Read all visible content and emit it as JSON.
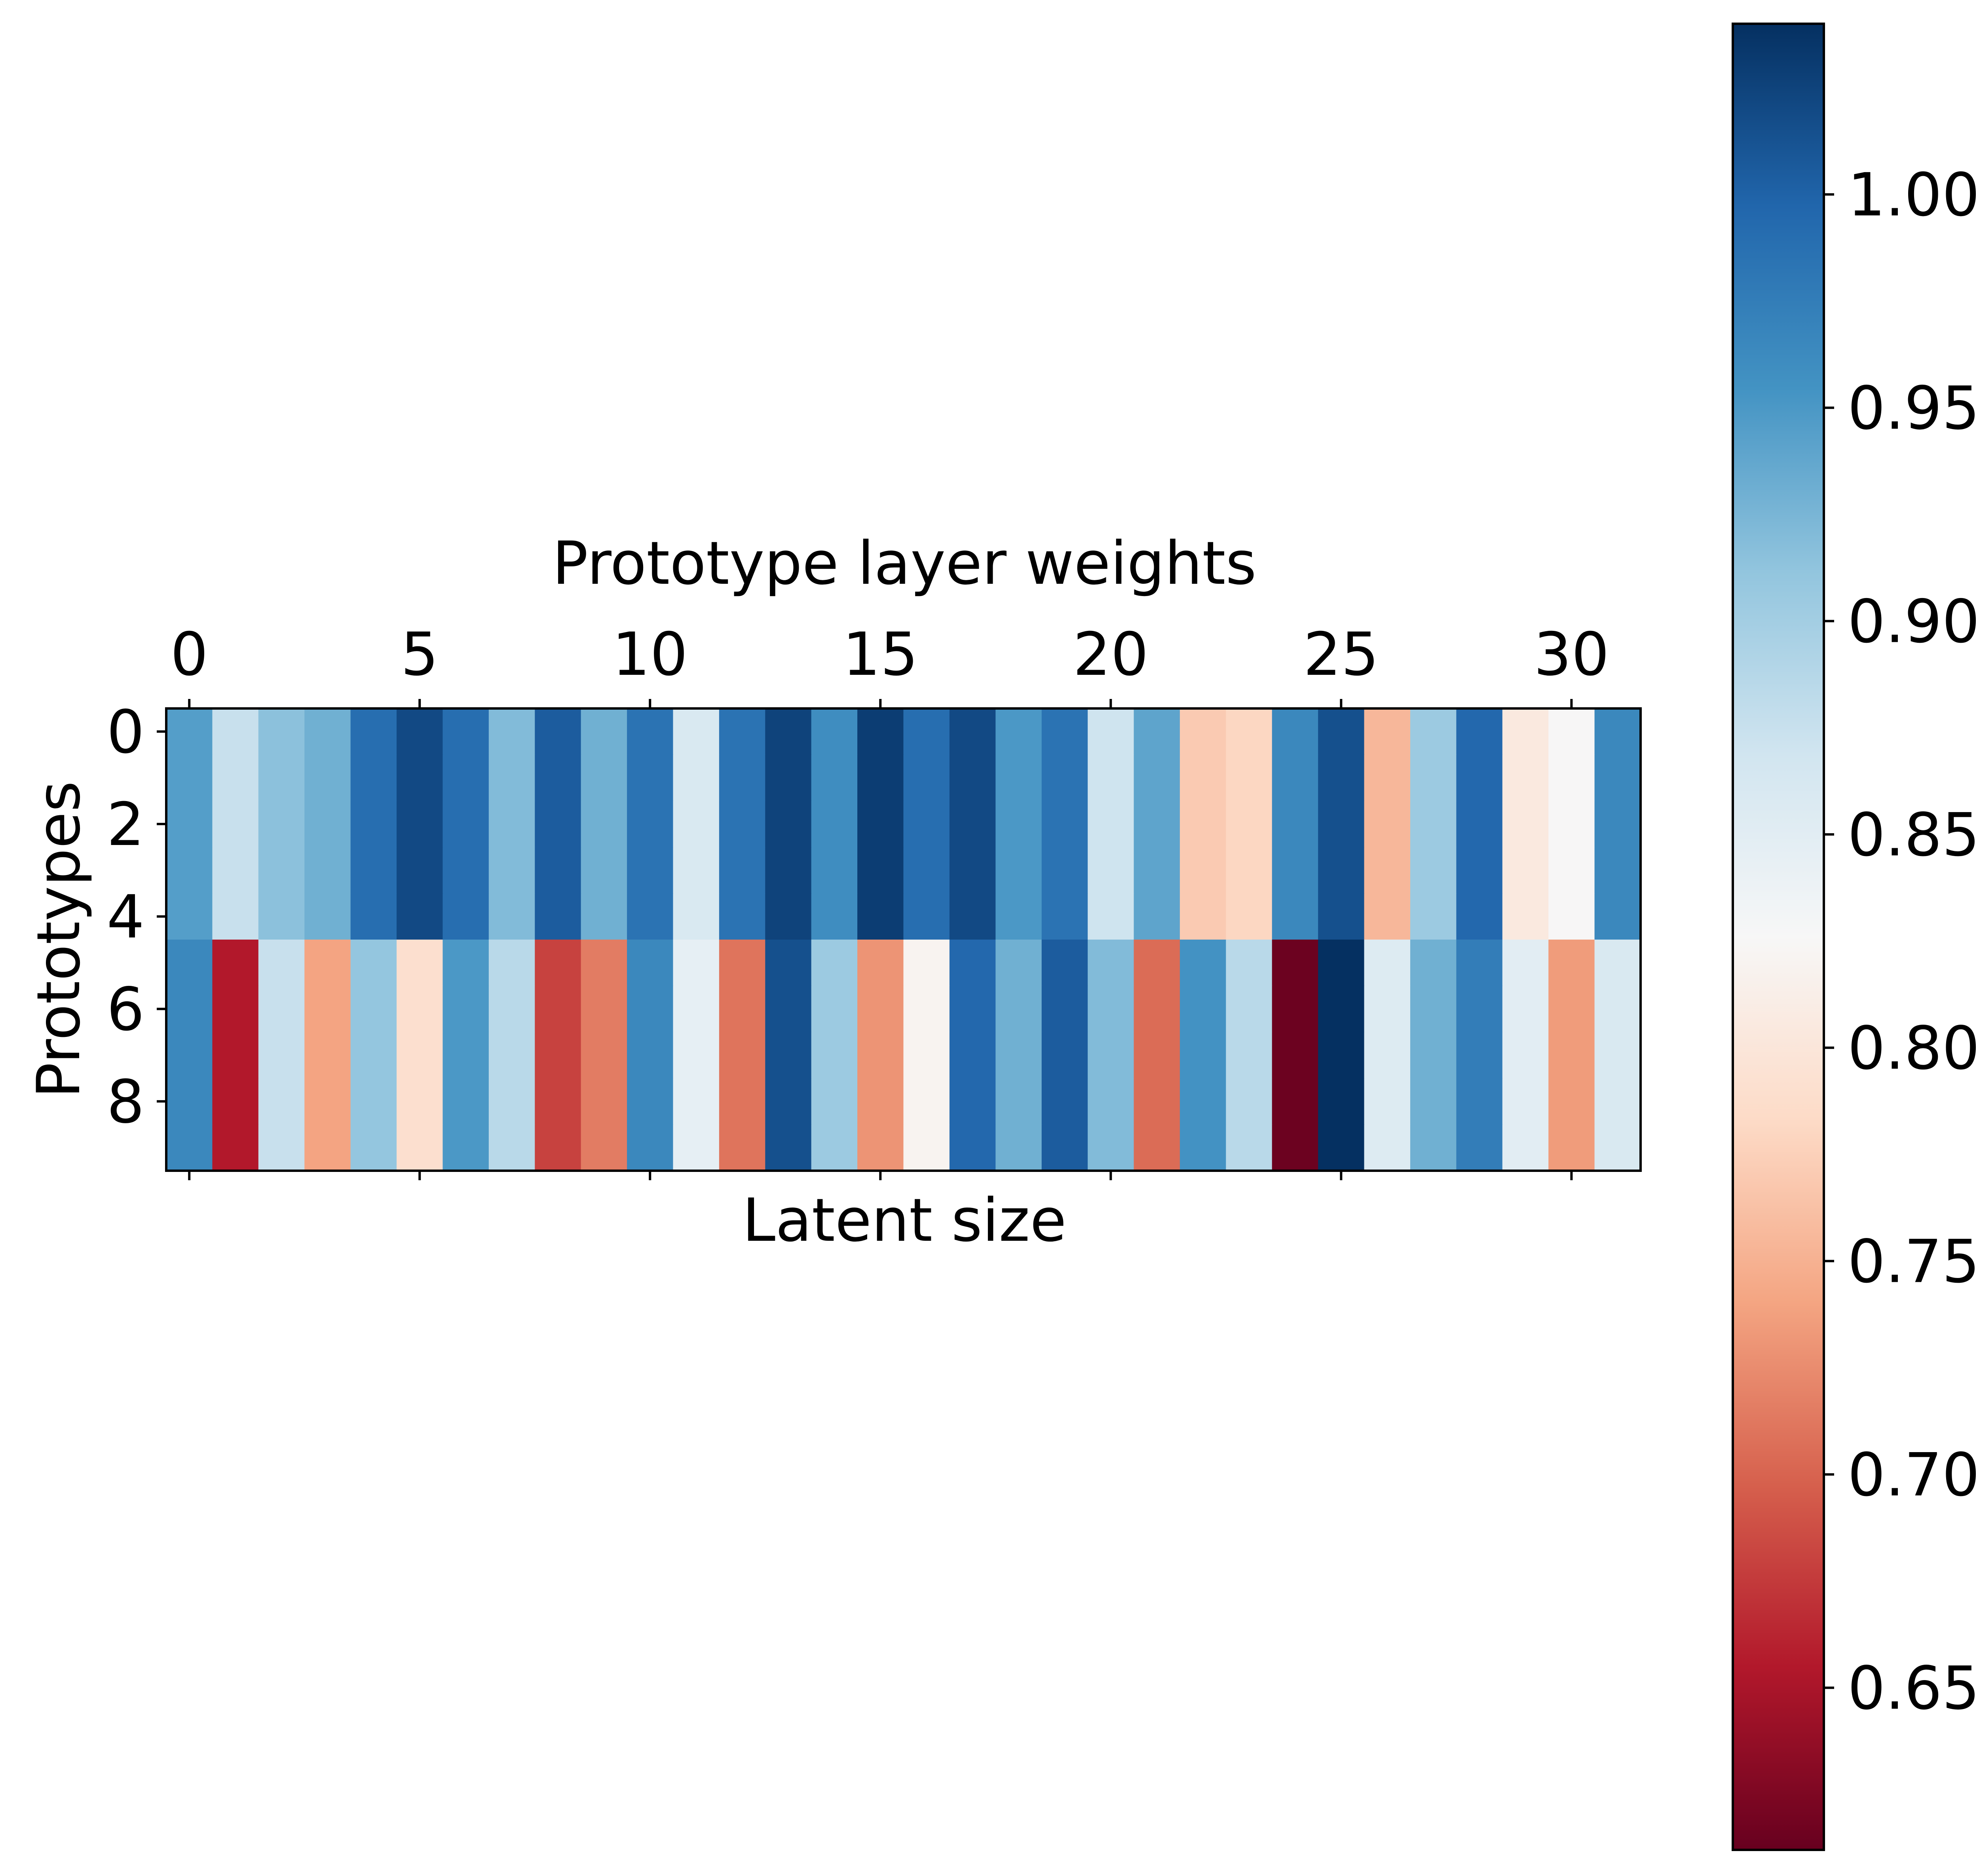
{
  "chart_data": {
    "type": "heatmap",
    "title": "Prototype layer weights",
    "xlabel": "Latent size",
    "ylabel": "Prototypes",
    "x_ticks": [
      0,
      5,
      10,
      15,
      20,
      25,
      30
    ],
    "y_ticks": [
      0,
      2,
      4,
      6,
      8
    ],
    "n_cols": 32,
    "n_rows": 10,
    "row_groups": [
      {
        "rows": [
          0,
          1,
          2,
          3,
          4
        ],
        "values": [
          0.945,
          0.875,
          0.915,
          0.93,
          0.99,
          1.02,
          0.99,
          0.92,
          1.005,
          0.93,
          0.985,
          0.86,
          0.985,
          1.025,
          0.96,
          1.03,
          0.99,
          1.02,
          0.95,
          0.985,
          0.87,
          0.94,
          0.77,
          0.78,
          0.965,
          1.015,
          0.755,
          0.905,
          0.995,
          0.805,
          0.825,
          0.965
        ]
      },
      {
        "rows": [
          5,
          6,
          7,
          8,
          9
        ],
        "values": [
          0.965,
          0.655,
          0.875,
          0.74,
          0.91,
          0.79,
          0.95,
          0.885,
          0.68,
          0.715,
          0.965,
          0.845,
          0.71,
          1.015,
          0.905,
          0.73,
          0.82,
          0.995,
          0.93,
          1.005,
          0.92,
          0.705,
          0.955,
          0.885,
          0.615,
          1.04,
          0.855,
          0.93,
          0.975,
          0.85,
          0.735,
          0.86
        ]
      }
    ],
    "colorbar": {
      "colormap": "RdBu",
      "vmin": 0.612,
      "vmax": 1.04,
      "ticks": [
        "0.65",
        "0.70",
        "0.75",
        "0.80",
        "0.85",
        "0.90",
        "0.95",
        "1.00"
      ]
    },
    "grid": false,
    "x_ticks_position": "top"
  }
}
